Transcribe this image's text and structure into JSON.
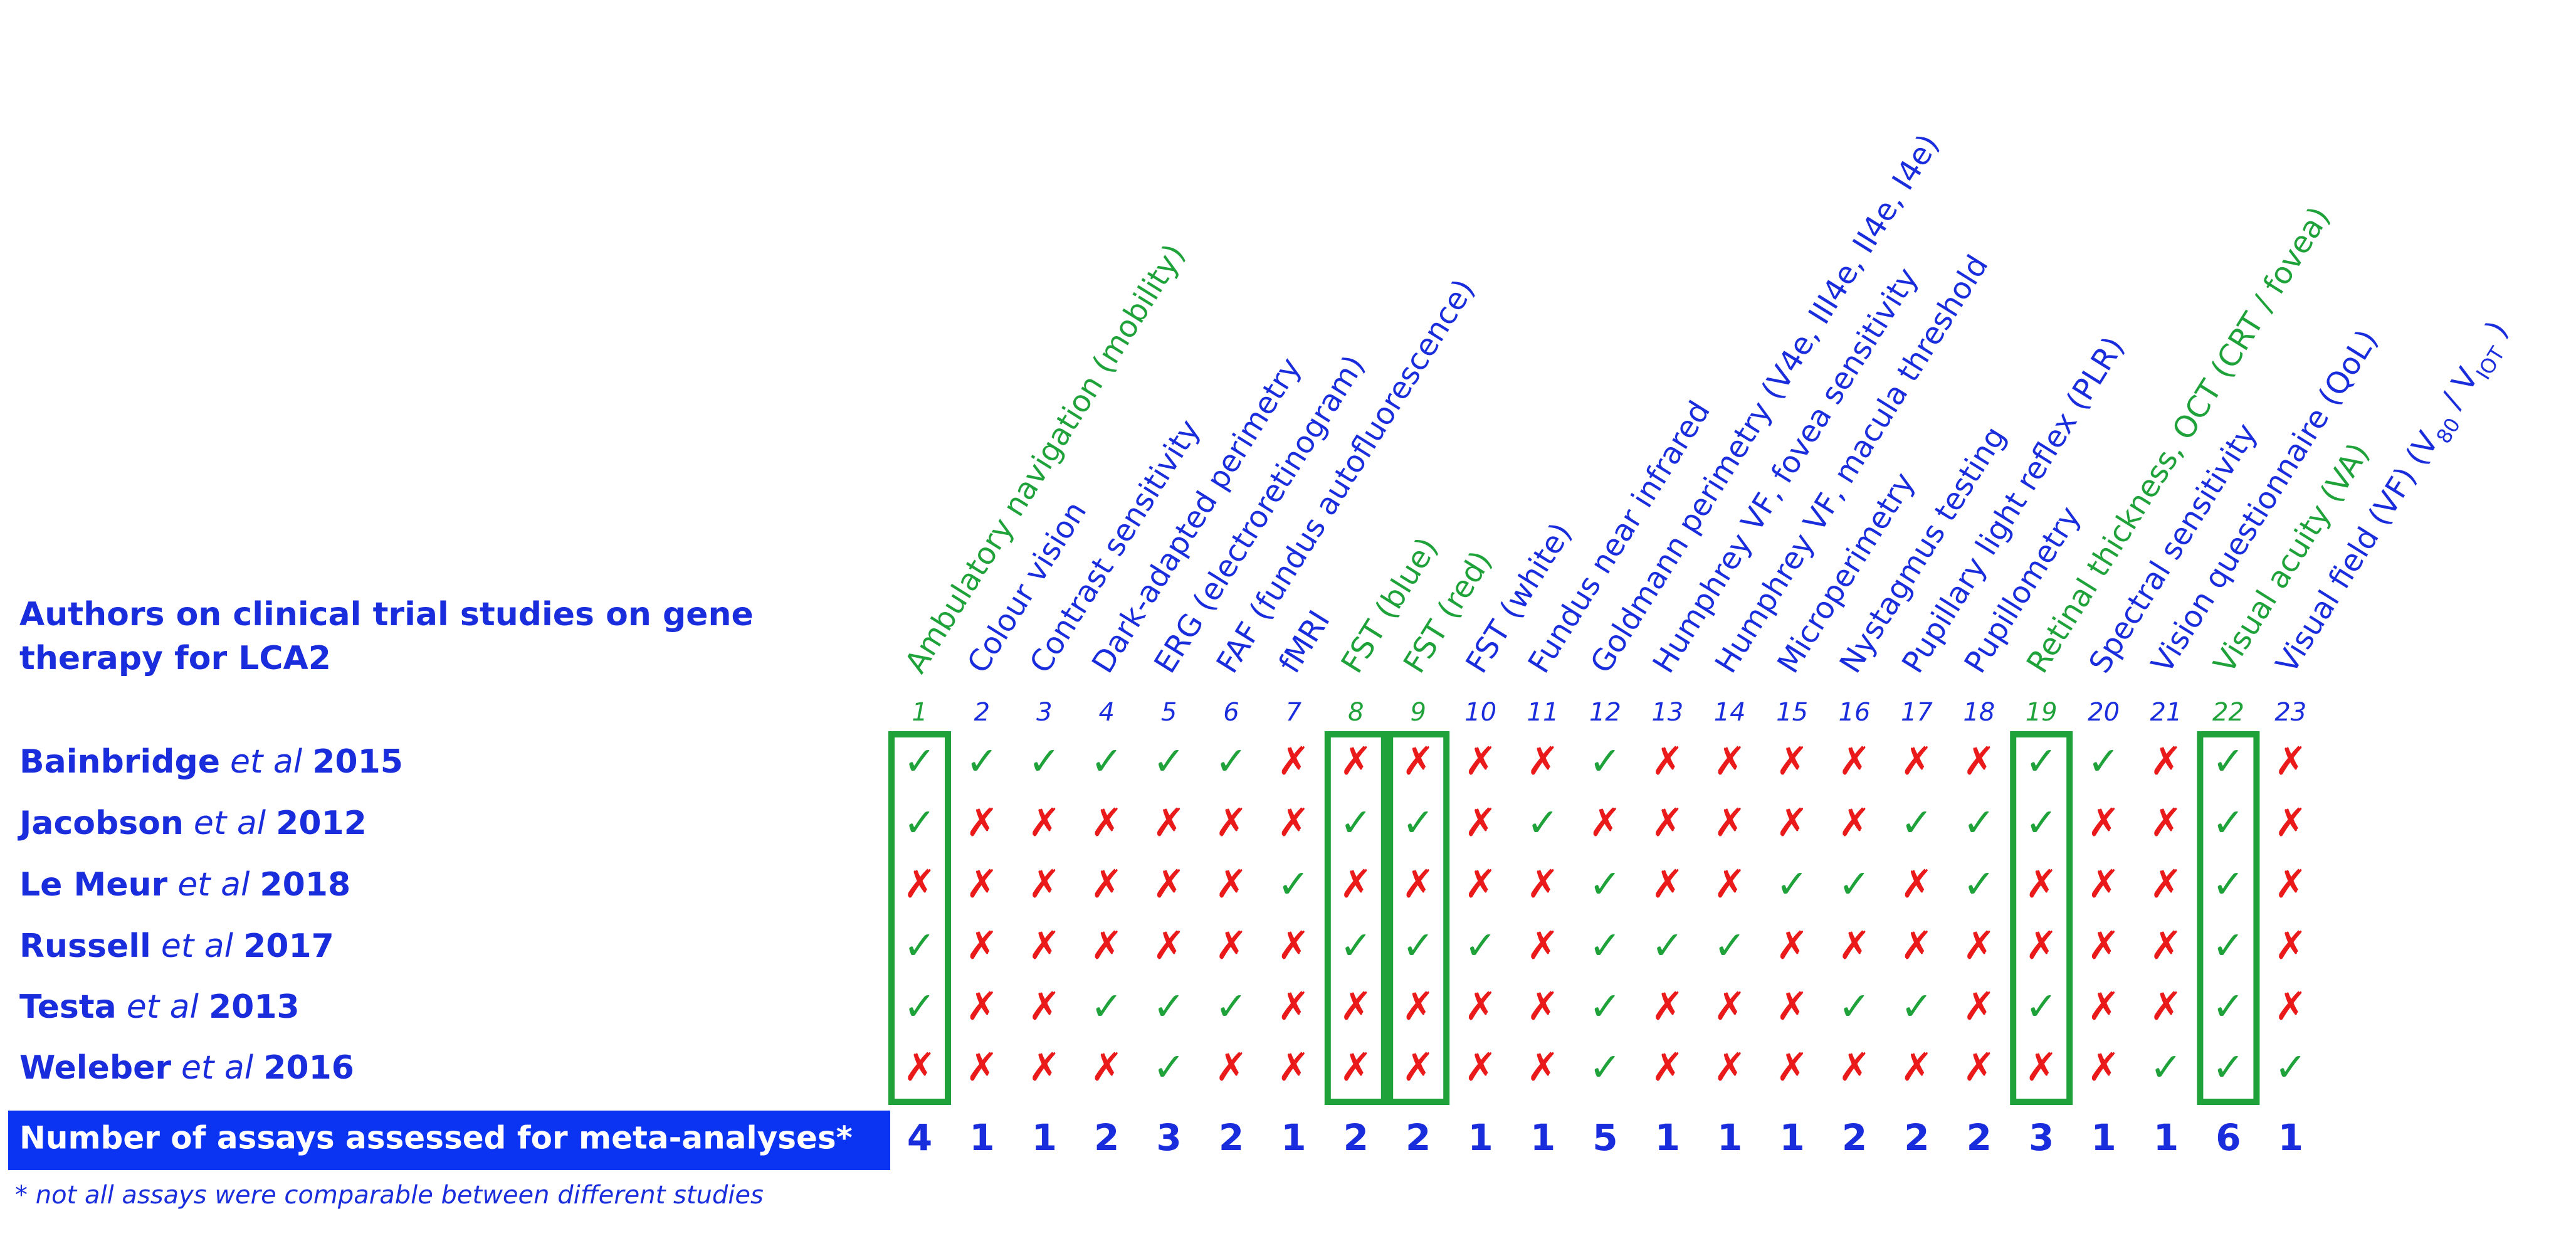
{
  "header": {
    "lines": [
      "Authors on clinical trial studies on gene",
      "therapy for LCA2"
    ]
  },
  "columns": [
    {
      "number": 1,
      "label": "Ambulatory navigation (mobility)",
      "highlight": true
    },
    {
      "number": 2,
      "label": "Colour vision",
      "highlight": false
    },
    {
      "number": 3,
      "label": "Contrast sensitivity",
      "highlight": false
    },
    {
      "number": 4,
      "label": "Dark-adapted perimetry",
      "highlight": false
    },
    {
      "number": 5,
      "label": "ERG (electroretinogram)",
      "highlight": false
    },
    {
      "number": 6,
      "label": "FAF (fundus autofluorescence)",
      "highlight": false
    },
    {
      "number": 7,
      "label": "fMRI",
      "highlight": false
    },
    {
      "number": 8,
      "label": "FST (blue)",
      "highlight": true
    },
    {
      "number": 9,
      "label": "FST (red)",
      "highlight": true
    },
    {
      "number": 10,
      "label": "FST (white)",
      "highlight": false
    },
    {
      "number": 11,
      "label": "Fundus near infrared",
      "highlight": false
    },
    {
      "number": 12,
      "label": "Goldmann perimetry (V4e, III4e, II4e, I4e)",
      "highlight": false
    },
    {
      "number": 13,
      "label": "Humphrey VF, fovea sensitivity",
      "highlight": false
    },
    {
      "number": 14,
      "label": "Humphrey VF, macula threshold",
      "highlight": false
    },
    {
      "number": 15,
      "label": "Microperimetry",
      "highlight": false
    },
    {
      "number": 16,
      "label": "Nystagmus testing",
      "highlight": false
    },
    {
      "number": 17,
      "label": "Pupillary light reflex (PLR)",
      "highlight": false
    },
    {
      "number": 18,
      "label": "Pupillometry",
      "highlight": false
    },
    {
      "number": 19,
      "label": "Retinal thickness, OCT (CRT / fovea)",
      "highlight": true
    },
    {
      "number": 20,
      "label": "Spectral sensitivity",
      "highlight": false
    },
    {
      "number": 21,
      "label": "Vision questionnaire (QoL)",
      "highlight": false
    },
    {
      "number": 22,
      "label": "Visual acuity (VA)",
      "highlight": true
    },
    {
      "number": 23,
      "label_parts": [
        {
          "text": "Visual field (VF) (V"
        },
        {
          "text": "80",
          "sub": true
        },
        {
          "text": " / V"
        },
        {
          "text": "IOT",
          "sub": true
        },
        {
          "text": " )"
        }
      ],
      "highlight": false
    }
  ],
  "rows": [
    {
      "author": "Bainbridge",
      "etal": "et al",
      "year": "2015",
      "cells": [
        "✓",
        "✓",
        "✓",
        "✓",
        "✓",
        "✓",
        "✗",
        "✗",
        "✗",
        "✗",
        "✗",
        "✓",
        "✗",
        "✗",
        "✗",
        "✗",
        "✗",
        "✗",
        "✓",
        "✓",
        "✗",
        "✓",
        "✗"
      ]
    },
    {
      "author": "Jacobson",
      "etal": "et al",
      "year": "2012",
      "cells": [
        "✓",
        "✗",
        "✗",
        "✗",
        "✗",
        "✗",
        "✗",
        "✓",
        "✓",
        "✗",
        "✓",
        "✗",
        "✗",
        "✗",
        "✗",
        "✗",
        "✓",
        "✓",
        "✓",
        "✗",
        "✗",
        "✓",
        "✗"
      ]
    },
    {
      "author": "Le Meur",
      "etal": "et al",
      "year": "2018",
      "cells": [
        "✗",
        "✗",
        "✗",
        "✗",
        "✗",
        "✗",
        "✓",
        "✗",
        "✗",
        "✗",
        "✗",
        "✓",
        "✗",
        "✗",
        "✓",
        "✓",
        "✗",
        "✓",
        "✗",
        "✗",
        "✗",
        "✓",
        "✗"
      ]
    },
    {
      "author": "Russell",
      "etal": "et al",
      "year": "2017",
      "cells": [
        "✓",
        "✗",
        "✗",
        "✗",
        "✗",
        "✗",
        "✗",
        "✓",
        "✓",
        "✓",
        "✗",
        "✓",
        "✓",
        "✓",
        "✗",
        "✗",
        "✗",
        "✗",
        "✗",
        "✗",
        "✗",
        "✓",
        "✗"
      ]
    },
    {
      "author": "Testa",
      "etal": "et al",
      "year": "2013",
      "cells": [
        "✓",
        "✗",
        "✗",
        "✓",
        "✓",
        "✓",
        "✗",
        "✗",
        "✗",
        "✗",
        "✗",
        "✓",
        "✗",
        "✗",
        "✗",
        "✓",
        "✓",
        "✗",
        "✓",
        "✗",
        "✗",
        "✓",
        "✗"
      ]
    },
    {
      "author": "Weleber",
      "etal": "et al",
      "year": "2016",
      "cells": [
        "✗",
        "✗",
        "✗",
        "✗",
        "✓",
        "✗",
        "✗",
        "✗",
        "✗",
        "✗",
        "✗",
        "✓",
        "✗",
        "✗",
        "✗",
        "✗",
        "✗",
        "✗",
        "✗",
        "✗",
        "✓",
        "✓",
        "✓"
      ]
    }
  ],
  "totals": {
    "label": "Number of assays assessed for meta-analyses*",
    "values": [
      4,
      1,
      1,
      2,
      3,
      2,
      1,
      2,
      2,
      1,
      1,
      5,
      1,
      1,
      1,
      2,
      2,
      2,
      3,
      1,
      1,
      6,
      1
    ]
  },
  "footnote": "* not all assays were comparable between different studies",
  "colors": {
    "✓": "#1fa23a",
    "✗": "#ea1a1a",
    "highlight": "#1fa23a",
    "text": "#1a2ddc",
    "bar": "#0b33f2"
  }
}
